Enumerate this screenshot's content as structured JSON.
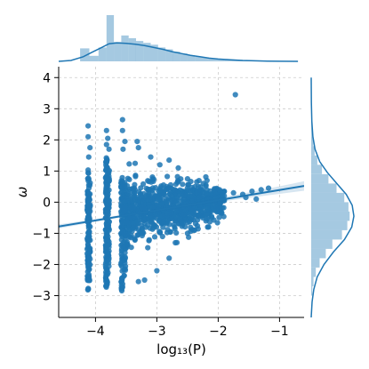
{
  "chart_data": {
    "type": "scatter",
    "variant": "jointplot with regression line and marginal histograms with KDE",
    "xlabel": "log₁₃(P)",
    "ylabel": "ω",
    "xlim": [
      -4.6,
      -0.6
    ],
    "ylim": [
      -3.7,
      4.35
    ],
    "x_ticks": [
      -4,
      -3,
      -2,
      -1
    ],
    "x_tick_labels": [
      "−4",
      "−3",
      "−2",
      "−1"
    ],
    "y_ticks": [
      -3,
      -2,
      -1,
      0,
      1,
      2,
      3,
      4
    ],
    "y_tick_labels": [
      "−3",
      "−2",
      "−1",
      "0",
      "1",
      "2",
      "3",
      "4"
    ],
    "grid": true,
    "color": "#1f77b4",
    "regression": {
      "x": [
        -4.6,
        -0.6
      ],
      "y": [
        -0.78,
        0.52
      ]
    },
    "columns": [
      {
        "x": -4.12,
        "ymin": -2.85,
        "ymax": 1.05,
        "count": 95
      },
      {
        "x": -4.1,
        "ymin": -2.6,
        "ymax": 0.85,
        "count": 40
      },
      {
        "x": -3.82,
        "ymin": -2.75,
        "ymax": 1.45,
        "count": 120
      },
      {
        "x": -3.79,
        "ymin": -2.3,
        "ymax": 1.05,
        "count": 60
      },
      {
        "x": -3.57,
        "ymin": -2.85,
        "ymax": 0.9,
        "count": 70
      },
      {
        "x": -3.52,
        "ymin": -2.4,
        "ymax": 0.7,
        "count": 35
      }
    ],
    "extra_points": [
      [
        -4.12,
        2.45
      ],
      [
        -4.12,
        2.1
      ],
      [
        -4.09,
        1.75
      ],
      [
        -4.11,
        1.45
      ],
      [
        -3.82,
        2.3
      ],
      [
        -3.8,
        2.05
      ],
      [
        -3.82,
        1.85
      ],
      [
        -3.78,
        1.7
      ],
      [
        -3.56,
        2.65
      ],
      [
        -3.56,
        2.3
      ],
      [
        -3.52,
        1.95
      ],
      [
        -3.55,
        1.7
      ],
      [
        -3.32,
        1.95
      ],
      [
        -3.3,
        1.75
      ],
      [
        -3.1,
        1.45
      ],
      [
        -2.95,
        1.2
      ],
      [
        -2.8,
        1.35
      ],
      [
        -2.65,
        1.1
      ],
      [
        -2.5,
        0.75
      ],
      [
        -2.35,
        0.65
      ],
      [
        -2.2,
        0.55
      ],
      [
        -2.05,
        0.4
      ],
      [
        -1.9,
        0.35
      ],
      [
        -1.75,
        0.3
      ],
      [
        -1.6,
        0.25
      ],
      [
        -1.45,
        0.35
      ],
      [
        -1.3,
        0.4
      ],
      [
        -1.18,
        0.45
      ],
      [
        -1.72,
        3.45
      ],
      [
        -2.2,
        -0.6
      ],
      [
        -2.5,
        -1.0
      ],
      [
        -2.8,
        -1.8
      ],
      [
        -3.0,
        -2.2
      ],
      [
        -3.2,
        -2.5
      ],
      [
        -3.3,
        -2.55
      ],
      [
        -2.4,
        -0.9
      ],
      [
        -2.0,
        -0.3
      ],
      [
        -1.9,
        0.05
      ],
      [
        -1.55,
        0.15
      ],
      [
        -1.38,
        0.1
      ]
    ],
    "cloud": {
      "x_range": [
        -3.55,
        -1.9
      ],
      "center_x": -3.0,
      "y_sd": 0.55,
      "count": 900
    },
    "marginal_x": {
      "bins": [
        {
          "x0": -4.25,
          "x1": -4.1,
          "height": 0.28
        },
        {
          "x0": -4.1,
          "x1": -3.95,
          "height": 0.12
        },
        {
          "x0": -3.95,
          "x1": -3.82,
          "height": 0.3
        },
        {
          "x0": -3.82,
          "x1": -3.7,
          "height": 1.0
        },
        {
          "x0": -3.7,
          "x1": -3.58,
          "height": 0.42
        },
        {
          "x0": -3.58,
          "x1": -3.46,
          "height": 0.56
        },
        {
          "x0": -3.46,
          "x1": -3.34,
          "height": 0.5
        },
        {
          "x0": -3.34,
          "x1": -3.22,
          "height": 0.44
        },
        {
          "x0": -3.22,
          "x1": -3.1,
          "height": 0.4
        },
        {
          "x0": -3.1,
          "x1": -2.98,
          "height": 0.36
        },
        {
          "x0": -2.98,
          "x1": -2.86,
          "height": 0.3
        },
        {
          "x0": -2.86,
          "x1": -2.74,
          "height": 0.26
        },
        {
          "x0": -2.74,
          "x1": -2.62,
          "height": 0.21
        },
        {
          "x0": -2.62,
          "x1": -2.5,
          "height": 0.17
        },
        {
          "x0": -2.5,
          "x1": -2.38,
          "height": 0.13
        },
        {
          "x0": -2.38,
          "x1": -2.26,
          "height": 0.1
        },
        {
          "x0": -2.26,
          "x1": -2.14,
          "height": 0.08
        },
        {
          "x0": -2.14,
          "x1": -2.02,
          "height": 0.06
        },
        {
          "x0": -2.02,
          "x1": -1.9,
          "height": 0.045
        },
        {
          "x0": -1.9,
          "x1": -1.78,
          "height": 0.035
        },
        {
          "x0": -1.78,
          "x1": -1.66,
          "height": 0.025
        },
        {
          "x0": -1.66,
          "x1": -1.54,
          "height": 0.02
        },
        {
          "x0": -1.54,
          "x1": -1.42,
          "height": 0.015
        },
        {
          "x0": -1.42,
          "x1": -1.3,
          "height": 0.012
        }
      ],
      "kde": [
        [
          -4.6,
          0.0
        ],
        [
          -4.4,
          0.02
        ],
        [
          -4.2,
          0.1
        ],
        [
          -4.05,
          0.2
        ],
        [
          -3.9,
          0.3
        ],
        [
          -3.78,
          0.38
        ],
        [
          -3.65,
          0.4
        ],
        [
          -3.5,
          0.39
        ],
        [
          -3.35,
          0.37
        ],
        [
          -3.2,
          0.34
        ],
        [
          -3.05,
          0.3
        ],
        [
          -2.9,
          0.26
        ],
        [
          -2.75,
          0.21
        ],
        [
          -2.6,
          0.17
        ],
        [
          -2.45,
          0.13
        ],
        [
          -2.3,
          0.1
        ],
        [
          -2.15,
          0.07
        ],
        [
          -2.0,
          0.05
        ],
        [
          -1.8,
          0.035
        ],
        [
          -1.6,
          0.02
        ],
        [
          -1.4,
          0.012
        ],
        [
          -1.2,
          0.006
        ],
        [
          -1.0,
          0.002
        ],
        [
          -0.7,
          0.0
        ]
      ]
    },
    "marginal_y": {
      "bins": [
        {
          "y0": -3.0,
          "y1": -2.7,
          "width": 0.03
        },
        {
          "y0": -2.7,
          "y1": -2.4,
          "width": 0.06
        },
        {
          "y0": -2.4,
          "y1": -2.1,
          "width": 0.12
        },
        {
          "y0": -2.1,
          "y1": -1.8,
          "width": 0.22
        },
        {
          "y0": -1.8,
          "y1": -1.5,
          "width": 0.38
        },
        {
          "y0": -1.5,
          "y1": -1.2,
          "width": 0.55
        },
        {
          "y0": -1.2,
          "y1": -0.9,
          "width": 0.8
        },
        {
          "y0": -0.9,
          "y1": -0.6,
          "width": 0.94
        },
        {
          "y0": -0.6,
          "y1": -0.3,
          "width": 1.0
        },
        {
          "y0": -0.3,
          "y1": 0.0,
          "width": 0.97
        },
        {
          "y0": 0.0,
          "y1": 0.3,
          "width": 0.86
        },
        {
          "y0": 0.3,
          "y1": 0.6,
          "width": 0.66
        },
        {
          "y0": 0.6,
          "y1": 0.9,
          "width": 0.45
        },
        {
          "y0": 0.9,
          "y1": 1.2,
          "width": 0.28
        },
        {
          "y0": 1.2,
          "y1": 1.5,
          "width": 0.16
        },
        {
          "y0": 1.5,
          "y1": 1.8,
          "width": 0.09
        },
        {
          "y0": 1.8,
          "y1": 2.1,
          "width": 0.05
        },
        {
          "y0": 2.1,
          "y1": 2.4,
          "width": 0.03
        },
        {
          "y0": 2.4,
          "y1": 2.7,
          "width": 0.015
        }
      ],
      "kde": [
        [
          -3.7,
          0.0
        ],
        [
          -3.2,
          0.02
        ],
        [
          -2.8,
          0.06
        ],
        [
          -2.4,
          0.14
        ],
        [
          -2.0,
          0.3
        ],
        [
          -1.6,
          0.52
        ],
        [
          -1.2,
          0.78
        ],
        [
          -0.8,
          0.95
        ],
        [
          -0.45,
          1.0
        ],
        [
          -0.1,
          0.96
        ],
        [
          0.25,
          0.82
        ],
        [
          0.6,
          0.6
        ],
        [
          0.95,
          0.38
        ],
        [
          1.3,
          0.2
        ],
        [
          1.7,
          0.09
        ],
        [
          2.1,
          0.04
        ],
        [
          2.6,
          0.015
        ],
        [
          3.2,
          0.005
        ],
        [
          4.0,
          0.0
        ]
      ]
    }
  }
}
